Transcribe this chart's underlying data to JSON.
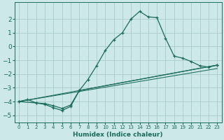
{
  "xlabel": "Humidex (Indice chaleur)",
  "bg_color": "#cce8e8",
  "grid_color": "#aacccc",
  "line_color": "#1a6b5a",
  "xlim": [
    -0.5,
    23.5
  ],
  "ylim": [
    -5.5,
    3.2
  ],
  "yticks": [
    -5,
    -4,
    -3,
    -2,
    -1,
    0,
    1,
    2
  ],
  "xticks": [
    0,
    1,
    2,
    3,
    4,
    5,
    6,
    7,
    8,
    9,
    10,
    11,
    12,
    13,
    14,
    15,
    16,
    17,
    18,
    19,
    20,
    21,
    22,
    23
  ],
  "series": [
    {
      "x": [
        0,
        1,
        2,
        3,
        4,
        5,
        6,
        7,
        8,
        9,
        10,
        11,
        12,
        13,
        14,
        15,
        16,
        17,
        18,
        19,
        20,
        21,
        22,
        23
      ],
      "y": [
        -4.0,
        -3.85,
        -4.1,
        -4.15,
        -4.3,
        -4.5,
        -4.25,
        -3.2,
        -2.4,
        -1.4,
        -0.3,
        0.5,
        1.0,
        2.0,
        2.55,
        2.15,
        2.1,
        0.6,
        -0.7,
        -0.85,
        -1.1,
        -1.4,
        -1.5,
        -1.35
      ],
      "marker": true
    },
    {
      "x": [
        0,
        2,
        3,
        4,
        5,
        6,
        7,
        23
      ],
      "y": [
        -4.0,
        -4.1,
        -4.2,
        -4.45,
        -4.65,
        -4.35,
        -3.2,
        -1.35
      ],
      "marker": true
    },
    {
      "x": [
        0,
        23
      ],
      "y": [
        -4.0,
        -1.35
      ],
      "marker": false
    },
    {
      "x": [
        0,
        23
      ],
      "y": [
        -4.0,
        -1.6
      ],
      "marker": false
    }
  ]
}
